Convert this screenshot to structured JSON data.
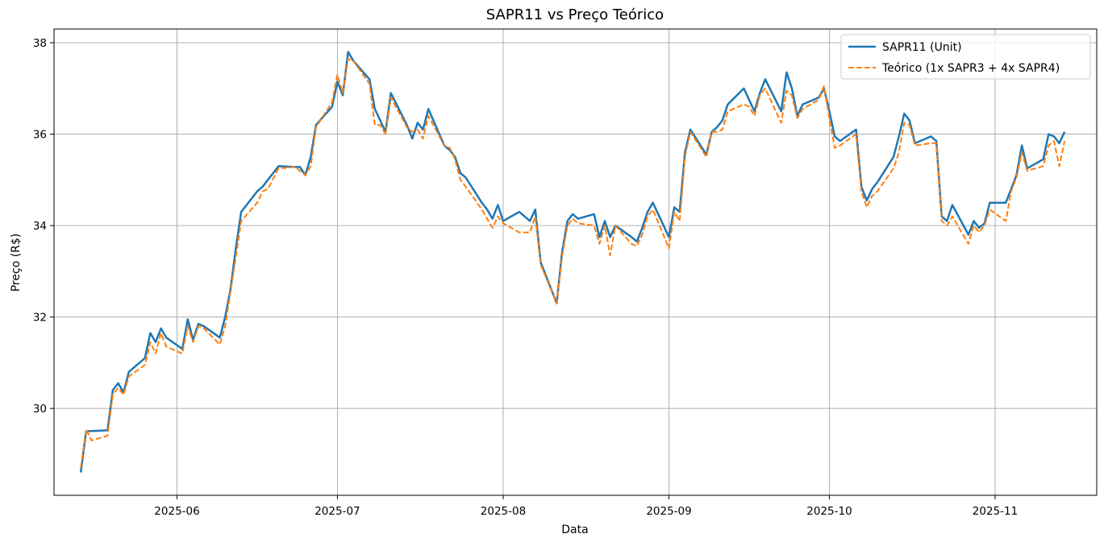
{
  "chart_data": {
    "type": "line",
    "title": "SAPR11 vs Preço Teórico",
    "xlabel": "Data",
    "ylabel": "Preço (R$)",
    "x_ticks": [
      "2025-06",
      "2025-07",
      "2025-08",
      "2025-09",
      "2025-10",
      "2025-11"
    ],
    "y_ticks": [
      30,
      32,
      34,
      36,
      38
    ],
    "xlim": [
      "2025-05-09",
      "2025-11-20"
    ],
    "ylim": [
      28.1,
      38.3
    ],
    "grid": true,
    "legend_position": "top-right",
    "series": [
      {
        "name": "SAPR11 (Unit)",
        "color": "#1f77b4",
        "style": "solid",
        "points": [
          [
            "2025-05-14",
            28.6
          ],
          [
            "2025-05-15",
            29.5
          ],
          [
            "2025-05-19",
            29.52
          ],
          [
            "2025-05-20",
            30.4
          ],
          [
            "2025-05-21",
            30.55
          ],
          [
            "2025-05-22",
            30.35
          ],
          [
            "2025-05-23",
            30.8
          ],
          [
            "2025-05-26",
            31.1
          ],
          [
            "2025-05-27",
            31.65
          ],
          [
            "2025-05-28",
            31.45
          ],
          [
            "2025-05-29",
            31.75
          ],
          [
            "2025-05-30",
            31.55
          ],
          [
            "2025-06-02",
            31.3
          ],
          [
            "2025-06-03",
            31.95
          ],
          [
            "2025-06-04",
            31.5
          ],
          [
            "2025-06-05",
            31.85
          ],
          [
            "2025-06-06",
            31.8
          ],
          [
            "2025-06-09",
            31.55
          ],
          [
            "2025-06-10",
            32.0
          ],
          [
            "2025-06-11",
            32.6
          ],
          [
            "2025-06-12",
            33.5
          ],
          [
            "2025-06-13",
            34.3
          ],
          [
            "2025-06-16",
            34.75
          ],
          [
            "2025-06-17",
            34.85
          ],
          [
            "2025-06-18",
            35.0
          ],
          [
            "2025-06-20",
            35.3
          ],
          [
            "2025-06-23",
            35.28
          ],
          [
            "2025-06-24",
            35.28
          ],
          [
            "2025-06-25",
            35.1
          ],
          [
            "2025-06-26",
            35.5
          ],
          [
            "2025-06-27",
            36.2
          ],
          [
            "2025-06-30",
            36.6
          ],
          [
            "2025-07-01",
            37.15
          ],
          [
            "2025-07-02",
            36.85
          ],
          [
            "2025-07-03",
            37.8
          ],
          [
            "2025-07-04",
            37.6
          ],
          [
            "2025-07-07",
            37.2
          ],
          [
            "2025-07-08",
            36.55
          ],
          [
            "2025-07-09",
            36.3
          ],
          [
            "2025-07-10",
            36.05
          ],
          [
            "2025-07-11",
            36.9
          ],
          [
            "2025-07-14",
            36.2
          ],
          [
            "2025-07-15",
            35.9
          ],
          [
            "2025-07-16",
            36.25
          ],
          [
            "2025-07-17",
            36.1
          ],
          [
            "2025-07-18",
            36.55
          ],
          [
            "2025-07-21",
            35.75
          ],
          [
            "2025-07-22",
            35.65
          ],
          [
            "2025-07-23",
            35.5
          ],
          [
            "2025-07-24",
            35.15
          ],
          [
            "2025-07-25",
            35.05
          ],
          [
            "2025-07-28",
            34.5
          ],
          [
            "2025-07-29",
            34.35
          ],
          [
            "2025-07-30",
            34.15
          ],
          [
            "2025-07-31",
            34.45
          ],
          [
            "2025-08-01",
            34.1
          ],
          [
            "2025-08-04",
            34.3
          ],
          [
            "2025-08-05",
            34.2
          ],
          [
            "2025-08-06",
            34.1
          ],
          [
            "2025-08-07",
            34.35
          ],
          [
            "2025-08-08",
            33.2
          ],
          [
            "2025-08-11",
            32.3
          ],
          [
            "2025-08-12",
            33.4
          ],
          [
            "2025-08-13",
            34.1
          ],
          [
            "2025-08-14",
            34.25
          ],
          [
            "2025-08-15",
            34.15
          ],
          [
            "2025-08-18",
            34.25
          ],
          [
            "2025-08-19",
            33.75
          ],
          [
            "2025-08-20",
            34.1
          ],
          [
            "2025-08-21",
            33.75
          ],
          [
            "2025-08-22",
            34.0
          ],
          [
            "2025-08-25",
            33.75
          ],
          [
            "2025-08-26",
            33.65
          ],
          [
            "2025-08-27",
            33.95
          ],
          [
            "2025-08-28",
            34.3
          ],
          [
            "2025-08-29",
            34.5
          ],
          [
            "2025-09-01",
            33.75
          ],
          [
            "2025-09-02",
            34.4
          ],
          [
            "2025-09-03",
            34.3
          ],
          [
            "2025-09-04",
            35.6
          ],
          [
            "2025-09-05",
            36.1
          ],
          [
            "2025-09-08",
            35.55
          ],
          [
            "2025-09-09",
            36.05
          ],
          [
            "2025-09-10",
            36.15
          ],
          [
            "2025-09-11",
            36.3
          ],
          [
            "2025-09-12",
            36.65
          ],
          [
            "2025-09-15",
            37.0
          ],
          [
            "2025-09-16",
            36.75
          ],
          [
            "2025-09-17",
            36.5
          ],
          [
            "2025-09-18",
            36.9
          ],
          [
            "2025-09-19",
            37.2
          ],
          [
            "2025-09-22",
            36.5
          ],
          [
            "2025-09-23",
            37.35
          ],
          [
            "2025-09-24",
            37.0
          ],
          [
            "2025-09-25",
            36.4
          ],
          [
            "2025-09-26",
            36.65
          ],
          [
            "2025-09-29",
            36.8
          ],
          [
            "2025-09-30",
            37.0
          ],
          [
            "2025-10-01",
            36.5
          ],
          [
            "2025-10-02",
            35.95
          ],
          [
            "2025-10-03",
            35.85
          ],
          [
            "2025-10-06",
            36.1
          ],
          [
            "2025-10-07",
            34.85
          ],
          [
            "2025-10-08",
            34.55
          ],
          [
            "2025-10-09",
            34.8
          ],
          [
            "2025-10-10",
            34.95
          ],
          [
            "2025-10-13",
            35.5
          ],
          [
            "2025-10-14",
            35.95
          ],
          [
            "2025-10-15",
            36.45
          ],
          [
            "2025-10-16",
            36.3
          ],
          [
            "2025-10-17",
            35.8
          ],
          [
            "2025-10-20",
            35.95
          ],
          [
            "2025-10-21",
            35.85
          ],
          [
            "2025-10-22",
            34.2
          ],
          [
            "2025-10-23",
            34.1
          ],
          [
            "2025-10-24",
            34.45
          ],
          [
            "2025-10-27",
            33.8
          ],
          [
            "2025-10-28",
            34.1
          ],
          [
            "2025-10-29",
            33.95
          ],
          [
            "2025-10-30",
            34.05
          ],
          [
            "2025-10-31",
            34.5
          ],
          [
            "2025-11-03",
            34.5
          ],
          [
            "2025-11-04",
            34.8
          ],
          [
            "2025-11-05",
            35.1
          ],
          [
            "2025-11-06",
            35.75
          ],
          [
            "2025-11-07",
            35.25
          ],
          [
            "2025-11-10",
            35.45
          ],
          [
            "2025-11-11",
            36.0
          ],
          [
            "2025-11-12",
            35.95
          ],
          [
            "2025-11-13",
            35.8
          ],
          [
            "2025-11-14",
            36.05
          ]
        ]
      },
      {
        "name": "Teórico (1x SAPR3 + 4x SAPR4)",
        "color": "#ff7f0e",
        "style": "dashed",
        "points": [
          [
            "2025-05-14",
            28.7
          ],
          [
            "2025-05-15",
            29.55
          ],
          [
            "2025-05-16",
            29.3
          ],
          [
            "2025-05-19",
            29.4
          ],
          [
            "2025-05-20",
            30.3
          ],
          [
            "2025-05-21",
            30.45
          ],
          [
            "2025-05-22",
            30.3
          ],
          [
            "2025-05-23",
            30.7
          ],
          [
            "2025-05-26",
            30.95
          ],
          [
            "2025-05-27",
            31.45
          ],
          [
            "2025-05-28",
            31.2
          ],
          [
            "2025-05-29",
            31.65
          ],
          [
            "2025-05-30",
            31.35
          ],
          [
            "2025-06-02",
            31.2
          ],
          [
            "2025-06-03",
            31.8
          ],
          [
            "2025-06-04",
            31.45
          ],
          [
            "2025-06-05",
            31.8
          ],
          [
            "2025-06-06",
            31.75
          ],
          [
            "2025-06-09",
            31.4
          ],
          [
            "2025-06-10",
            31.8
          ],
          [
            "2025-06-11",
            32.55
          ],
          [
            "2025-06-12",
            33.3
          ],
          [
            "2025-06-13",
            34.1
          ],
          [
            "2025-06-16",
            34.5
          ],
          [
            "2025-06-17",
            34.75
          ],
          [
            "2025-06-18",
            34.8
          ],
          [
            "2025-06-20",
            35.25
          ],
          [
            "2025-06-23",
            35.28
          ],
          [
            "2025-06-24",
            35.2
          ],
          [
            "2025-06-25",
            35.1
          ],
          [
            "2025-06-26",
            35.3
          ],
          [
            "2025-06-27",
            36.15
          ],
          [
            "2025-06-30",
            36.7
          ],
          [
            "2025-07-01",
            37.3
          ],
          [
            "2025-07-02",
            36.9
          ],
          [
            "2025-07-03",
            37.65
          ],
          [
            "2025-07-04",
            37.6
          ],
          [
            "2025-07-07",
            37.1
          ],
          [
            "2025-07-08",
            36.2
          ],
          [
            "2025-07-09",
            36.2
          ],
          [
            "2025-07-10",
            36.0
          ],
          [
            "2025-07-11",
            36.8
          ],
          [
            "2025-07-14",
            36.15
          ],
          [
            "2025-07-15",
            36.05
          ],
          [
            "2025-07-16",
            36.1
          ],
          [
            "2025-07-17",
            35.9
          ],
          [
            "2025-07-18",
            36.4
          ],
          [
            "2025-07-21",
            35.75
          ],
          [
            "2025-07-22",
            35.7
          ],
          [
            "2025-07-23",
            35.45
          ],
          [
            "2025-07-24",
            35.0
          ],
          [
            "2025-07-25",
            34.85
          ],
          [
            "2025-07-28",
            34.35
          ],
          [
            "2025-07-29",
            34.15
          ],
          [
            "2025-07-30",
            33.95
          ],
          [
            "2025-07-31",
            34.2
          ],
          [
            "2025-08-01",
            34.05
          ],
          [
            "2025-08-04",
            33.85
          ],
          [
            "2025-08-05",
            33.85
          ],
          [
            "2025-08-06",
            33.85
          ],
          [
            "2025-08-07",
            34.2
          ],
          [
            "2025-08-08",
            33.15
          ],
          [
            "2025-08-11",
            32.3
          ],
          [
            "2025-08-12",
            33.3
          ],
          [
            "2025-08-13",
            34.0
          ],
          [
            "2025-08-14",
            34.15
          ],
          [
            "2025-08-15",
            34.05
          ],
          [
            "2025-08-18",
            34.0
          ],
          [
            "2025-08-19",
            33.6
          ],
          [
            "2025-08-20",
            34.0
          ],
          [
            "2025-08-21",
            33.35
          ],
          [
            "2025-08-22",
            34.0
          ],
          [
            "2025-08-25",
            33.6
          ],
          [
            "2025-08-26",
            33.55
          ],
          [
            "2025-08-27",
            33.8
          ],
          [
            "2025-08-28",
            34.2
          ],
          [
            "2025-08-29",
            34.35
          ],
          [
            "2025-09-01",
            33.5
          ],
          [
            "2025-09-02",
            34.3
          ],
          [
            "2025-09-03",
            34.1
          ],
          [
            "2025-09-04",
            35.5
          ],
          [
            "2025-09-05",
            36.05
          ],
          [
            "2025-09-08",
            35.5
          ],
          [
            "2025-09-09",
            36.05
          ],
          [
            "2025-09-10",
            36.05
          ],
          [
            "2025-09-11",
            36.1
          ],
          [
            "2025-09-12",
            36.5
          ],
          [
            "2025-09-15",
            36.65
          ],
          [
            "2025-09-16",
            36.6
          ],
          [
            "2025-09-17",
            36.4
          ],
          [
            "2025-09-18",
            36.85
          ],
          [
            "2025-09-19",
            37.0
          ],
          [
            "2025-09-22",
            36.25
          ],
          [
            "2025-09-23",
            36.95
          ],
          [
            "2025-09-24",
            36.85
          ],
          [
            "2025-09-25",
            36.35
          ],
          [
            "2025-09-26",
            36.55
          ],
          [
            "2025-09-29",
            36.75
          ],
          [
            "2025-09-30",
            37.05
          ],
          [
            "2025-10-01",
            36.35
          ],
          [
            "2025-10-02",
            35.7
          ],
          [
            "2025-10-03",
            35.75
          ],
          [
            "2025-10-06",
            36.0
          ],
          [
            "2025-10-07",
            34.75
          ],
          [
            "2025-10-08",
            34.4
          ],
          [
            "2025-10-09",
            34.65
          ],
          [
            "2025-10-10",
            34.75
          ],
          [
            "2025-10-13",
            35.25
          ],
          [
            "2025-10-14",
            35.6
          ],
          [
            "2025-10-15",
            36.25
          ],
          [
            "2025-10-16",
            36.2
          ],
          [
            "2025-10-17",
            35.75
          ],
          [
            "2025-10-20",
            35.8
          ],
          [
            "2025-10-21",
            35.8
          ],
          [
            "2025-10-22",
            34.1
          ],
          [
            "2025-10-23",
            34.0
          ],
          [
            "2025-10-24",
            34.2
          ],
          [
            "2025-10-27",
            33.6
          ],
          [
            "2025-10-28",
            34.0
          ],
          [
            "2025-10-29",
            33.85
          ],
          [
            "2025-10-30",
            34.0
          ],
          [
            "2025-10-31",
            34.35
          ],
          [
            "2025-11-03",
            34.1
          ],
          [
            "2025-11-04",
            34.75
          ],
          [
            "2025-11-05",
            35.05
          ],
          [
            "2025-11-06",
            35.6
          ],
          [
            "2025-11-07",
            35.2
          ],
          [
            "2025-11-10",
            35.3
          ],
          [
            "2025-11-11",
            35.75
          ],
          [
            "2025-11-12",
            35.85
          ],
          [
            "2025-11-13",
            35.3
          ],
          [
            "2025-11-14",
            35.85
          ]
        ]
      }
    ]
  }
}
